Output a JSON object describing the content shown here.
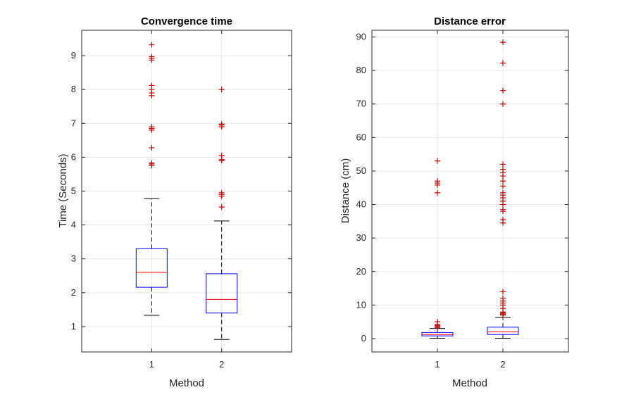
{
  "chart_data": [
    {
      "type": "box",
      "title": "Convergence time",
      "xlabel": "Method",
      "ylabel": "Time (Seconds)",
      "categories": [
        "1",
        "2"
      ],
      "ylim": [
        0.25,
        9.75
      ],
      "yticks": [
        1,
        2,
        3,
        4,
        5,
        6,
        7,
        8,
        9
      ],
      "grid": true,
      "boxes": [
        {
          "category": "1",
          "whisker_low": 1.33,
          "q1": 2.16,
          "median": 2.6,
          "q3": 3.3,
          "whisker_high": 4.78,
          "outliers": [
            5.75,
            5.8,
            5.83,
            6.28,
            6.8,
            6.85,
            6.9,
            7.82,
            7.9,
            8.0,
            8.12,
            8.87,
            8.92,
            8.97,
            9.32
          ]
        },
        {
          "category": "2",
          "whisker_low": 0.62,
          "q1": 1.4,
          "median": 1.8,
          "q3": 2.56,
          "whisker_high": 4.12,
          "outliers": [
            4.53,
            4.85,
            4.9,
            4.95,
            5.9,
            5.93,
            6.05,
            6.9,
            6.95,
            6.98,
            8.0
          ]
        }
      ]
    },
    {
      "type": "box",
      "title": "Distance error",
      "xlabel": "Method",
      "ylabel": "Distance (cm)",
      "categories": [
        "1",
        "2"
      ],
      "ylim": [
        -4,
        92
      ],
      "yticks": [
        0,
        10,
        20,
        30,
        40,
        50,
        60,
        70,
        80,
        90
      ],
      "grid": true,
      "boxes": [
        {
          "category": "1",
          "whisker_low": 0.1,
          "q1": 0.8,
          "median": 1.2,
          "q3": 1.8,
          "whisker_high": 3.0,
          "outliers": [
            3.3,
            3.6,
            3.9,
            4.2,
            5.0,
            43.5,
            45.8,
            46.4,
            47.0,
            53.0
          ]
        },
        {
          "category": "2",
          "whisker_low": 0.1,
          "q1": 1.2,
          "median": 2.0,
          "q3": 3.4,
          "whisker_high": 6.3,
          "outliers": [
            7.0,
            7.3,
            7.6,
            7.9,
            9.0,
            10.0,
            10.6,
            11.2,
            12.0,
            14.0,
            34.5,
            35.5,
            38.0,
            38.5,
            40.0,
            41.0,
            42.0,
            42.8,
            43.5,
            45.5,
            47.0,
            48.5,
            49.5,
            50.5,
            52.0,
            70.0,
            74.0,
            82.2,
            88.4
          ]
        }
      ]
    }
  ],
  "colors": {
    "box": "#0000ff",
    "median": "#ff0000",
    "outlier": "#cc0000",
    "whisker": "#000000",
    "axis": "#262626",
    "grid": "#e6e6e6"
  }
}
